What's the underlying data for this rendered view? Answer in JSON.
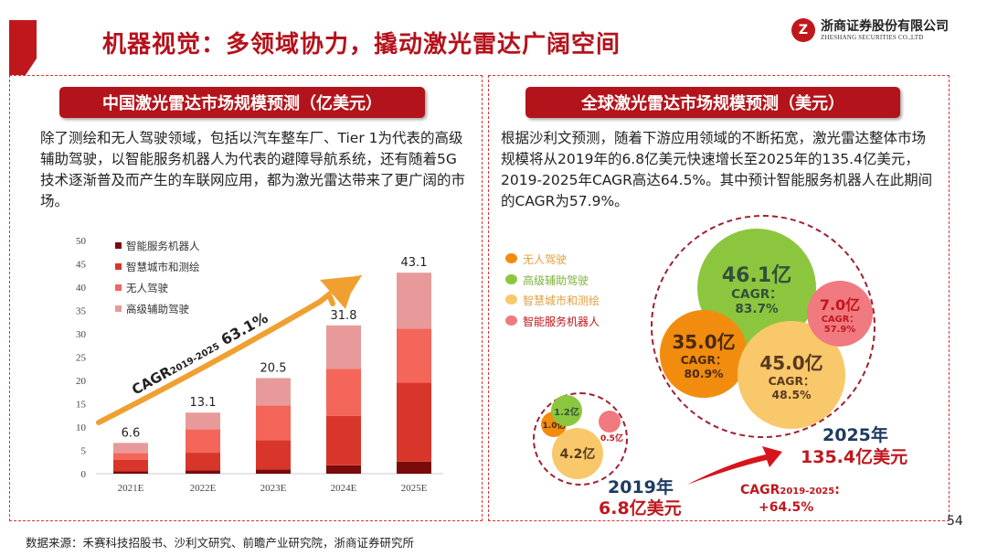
{
  "header": {
    "title": "机器视觉：多领域协力，撬动激光雷达广阔空间",
    "logo_cn": "浙商证券股份有限公司",
    "logo_en": "ZHESHANG SECURITIES CO.,LTD"
  },
  "left": {
    "heading": "中国激光雷达市场规模预测（亿美元）",
    "text": "除了测绘和无人驾驶领域，包括以汽车整车厂、Tier 1为代表的高级辅助驾驶，以智能服务机器人为代表的避障导航系统，还有随着5G技术逐渐普及而产生的车联网应用，都为激光雷达带来了更广阔的市场。"
  },
  "right": {
    "heading": "全球激光雷达市场规模预测（美元）",
    "text": "根据沙利文预测，随着下游应用领域的不断拓宽，激光雷达整体市场规模将从2019年的6.8亿美元快速增长至2025年的135.4亿美元，2019-2025年CAGR高达64.5%。其中预计智能服务机器人在此期间的CAGR为57.9%。"
  },
  "chart_data": [
    {
      "type": "bar",
      "stacked": true,
      "categories": [
        "2021E",
        "2022E",
        "2023E",
        "2024E",
        "2025E"
      ],
      "series": [
        {
          "name": "智能服务机器人",
          "color": "#7b0a0a",
          "values": [
            0.5,
            0.7,
            0.9,
            1.8,
            2.6
          ]
        },
        {
          "name": "智慧城市和测绘",
          "color": "#d9362b",
          "values": [
            2.5,
            3.8,
            6.3,
            10.6,
            16.9
          ]
        },
        {
          "name": "无人驾驶",
          "color": "#f4655a",
          "values": [
            1.4,
            5.0,
            7.4,
            10.1,
            11.6
          ]
        },
        {
          "name": "高级辅助驾驶",
          "color": "#e89a9a",
          "values": [
            2.2,
            3.6,
            5.9,
            9.3,
            12.0
          ]
        }
      ],
      "totals": [
        "6.6",
        "13.1",
        "20.5",
        "31.8",
        "43.1"
      ],
      "ylim": [
        0,
        50
      ],
      "yticks": [
        "0",
        "5",
        "10",
        "15",
        "20",
        "25",
        "30",
        "35",
        "40",
        "45",
        "50"
      ],
      "legend": "top-left",
      "annotation": {
        "prefix": "CAGR",
        "sub": "2019-2025",
        "value": "63.1%"
      }
    },
    {
      "type": "bubble",
      "legend": [
        {
          "name": "无人驾驶",
          "color": "#f28c0f"
        },
        {
          "name": "高级辅助驾驶",
          "color": "#8cc63f"
        },
        {
          "name": "智慧城市和测绘",
          "color": "#f9c86b"
        },
        {
          "name": "智能服务机器人",
          "color": "#f07a80"
        }
      ],
      "y2019": {
        "label": "2019年",
        "total": "6.8亿美元",
        "values": {
          "无人驾驶": "1.0亿",
          "高级辅助驾驶": "1.2亿",
          "智慧城市和测绘": "4.2亿",
          "智能服务机器人": "0.5亿"
        }
      },
      "y2025": {
        "label": "2025年",
        "total": "135.4亿美元",
        "values": {
          "无人驾驶": "35.0亿",
          "高级辅助驾驶": "46.1亿",
          "智慧城市和测绘": "45.0亿",
          "智能服务机器人": "7.0亿"
        },
        "cagr": {
          "无人驾驶": "CAGR：80.9%",
          "高级辅助驾驶": "CAGR：83.7%",
          "智慧城市和测绘": "CAGR：48.5%",
          "智能服务机器人": "CAGR：57.9%"
        }
      },
      "overall_cagr": {
        "prefix": "CAGR",
        "sub": "2019-2025",
        "suffix": ":",
        "value": "+64.5%"
      }
    }
  ],
  "footer": {
    "source": "数据来源：禾赛科技招股书、沙利文研究、前瞻产业研究院，浙商证券研究所",
    "page": "54"
  }
}
